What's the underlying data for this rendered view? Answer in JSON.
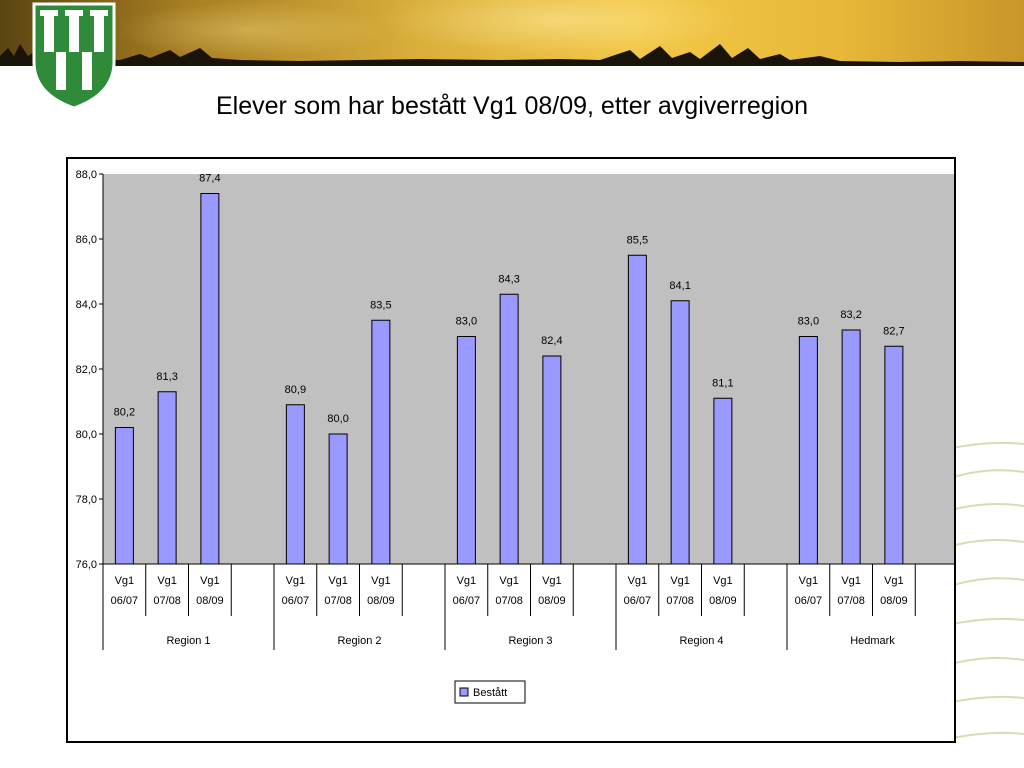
{
  "slide": {
    "title": "Elever som har bestått Vg1 08/09, etter avgiverregion",
    "banner_icon": "county-crest-icon"
  },
  "colors": {
    "bar_fill": "#9999ff",
    "bar_stroke": "#000000",
    "plot_background": "#c0c0c0"
  },
  "chart_data": {
    "type": "bar",
    "title": "",
    "ylabel": "",
    "xlabel": "",
    "ylim": [
      76.0,
      88.0
    ],
    "yticks": [
      "76,0",
      "78,0",
      "80,0",
      "82,0",
      "84,0",
      "86,0",
      "88,0"
    ],
    "yticks_values": [
      76,
      78,
      80,
      82,
      84,
      86,
      88
    ],
    "groups": [
      {
        "name": "Region 1",
        "categories": [
          {
            "line1": "Vg1",
            "line2": "06/07"
          },
          {
            "line1": "Vg1",
            "line2": "07/08"
          },
          {
            "line1": "Vg1",
            "line2": "08/09"
          }
        ],
        "values": [
          80.2,
          81.3,
          87.4
        ],
        "labels": [
          "80,2",
          "81,3",
          "87,4"
        ]
      },
      {
        "name": "Region 2",
        "categories": [
          {
            "line1": "Vg1",
            "line2": "06/07"
          },
          {
            "line1": "Vg1",
            "line2": "07/08"
          },
          {
            "line1": "Vg1",
            "line2": "08/09"
          }
        ],
        "values": [
          80.9,
          80.0,
          83.5
        ],
        "labels": [
          "80,9",
          "80,0",
          "83,5"
        ]
      },
      {
        "name": "Region 3",
        "categories": [
          {
            "line1": "Vg1",
            "line2": "06/07"
          },
          {
            "line1": "Vg1",
            "line2": "07/08"
          },
          {
            "line1": "Vg1",
            "line2": "08/09"
          }
        ],
        "values": [
          83.0,
          84.3,
          82.4
        ],
        "labels": [
          "83,0",
          "84,3",
          "82,4"
        ]
      },
      {
        "name": "Region 4",
        "categories": [
          {
            "line1": "Vg1",
            "line2": "06/07"
          },
          {
            "line1": "Vg1",
            "line2": "07/08"
          },
          {
            "line1": "Vg1",
            "line2": "08/09"
          }
        ],
        "values": [
          85.5,
          84.1,
          81.1
        ],
        "labels": [
          "85,5",
          "84,1",
          "81,1"
        ]
      },
      {
        "name": "Hedmark",
        "categories": [
          {
            "line1": "Vg1",
            "line2": "06/07"
          },
          {
            "line1": "Vg1",
            "line2": "07/08"
          },
          {
            "line1": "Vg1",
            "line2": "08/09"
          }
        ],
        "values": [
          83.0,
          83.2,
          82.7
        ],
        "labels": [
          "83,0",
          "83,2",
          "82,7"
        ]
      }
    ],
    "series": [
      {
        "name": "Bestått"
      }
    ],
    "legend_position": "bottom-center",
    "grid": false
  }
}
